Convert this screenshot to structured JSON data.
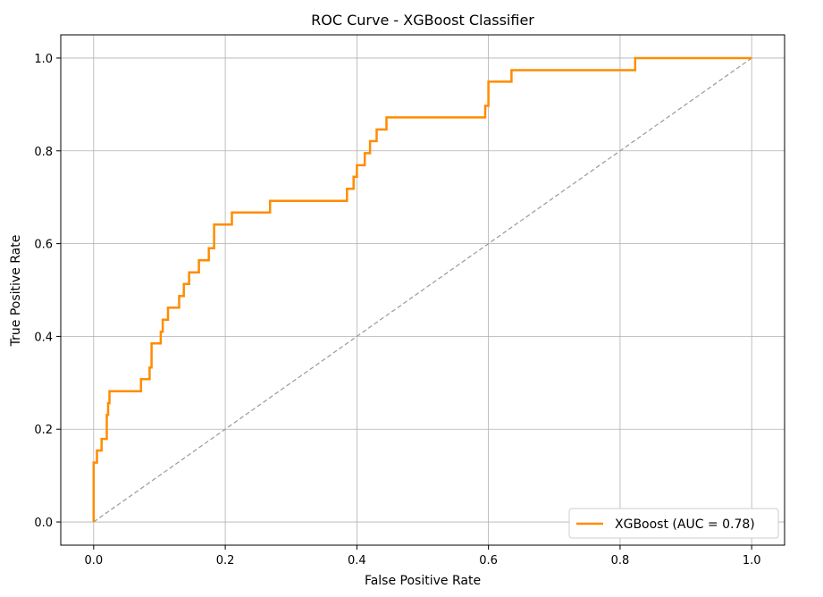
{
  "chart_data": {
    "type": "line",
    "title": "ROC Curve - XGBoost Classifier",
    "xlabel": "False Positive Rate",
    "ylabel": "True Positive Rate",
    "xlim": [
      -0.05,
      1.05
    ],
    "ylim": [
      -0.05,
      1.05
    ],
    "xticks": [
      "0.0",
      "0.2",
      "0.4",
      "0.6",
      "0.8",
      "1.0"
    ],
    "yticks": [
      "0.0",
      "0.2",
      "0.4",
      "0.6",
      "0.8",
      "1.0"
    ],
    "grid": true,
    "legend_position": "bottom-right",
    "series": [
      {
        "name": "XGBoost (AUC = 0.78)",
        "color": "#ff8c00",
        "style": "solid",
        "x": [
          0,
          0,
          0.005,
          0.005,
          0.012,
          0.012,
          0.02,
          0.02,
          0.022,
          0.022,
          0.024,
          0.024,
          0.03,
          0.03,
          0.072,
          0.072,
          0.085,
          0.085,
          0.088,
          0.088,
          0.102,
          0.102,
          0.105,
          0.105,
          0.113,
          0.113,
          0.13,
          0.13,
          0.137,
          0.137,
          0.145,
          0.145,
          0.16,
          0.16,
          0.175,
          0.175,
          0.183,
          0.183,
          0.21,
          0.21,
          0.268,
          0.268,
          0.385,
          0.385,
          0.395,
          0.395,
          0.4,
          0.4,
          0.412,
          0.412,
          0.42,
          0.42,
          0.43,
          0.43,
          0.445,
          0.445,
          0.595,
          0.595,
          0.6,
          0.6,
          0.635,
          0.635,
          0.823,
          0.823,
          1.0
        ],
        "y": [
          0,
          0.128,
          0.128,
          0.154,
          0.154,
          0.179,
          0.179,
          0.231,
          0.231,
          0.256,
          0.256,
          0.282,
          0.282,
          0.282,
          0.282,
          0.308,
          0.308,
          0.333,
          0.333,
          0.385,
          0.385,
          0.41,
          0.41,
          0.436,
          0.436,
          0.462,
          0.462,
          0.487,
          0.487,
          0.513,
          0.513,
          0.538,
          0.538,
          0.564,
          0.564,
          0.59,
          0.59,
          0.641,
          0.641,
          0.667,
          0.667,
          0.692,
          0.692,
          0.718,
          0.718,
          0.744,
          0.744,
          0.769,
          0.769,
          0.795,
          0.795,
          0.821,
          0.821,
          0.846,
          0.846,
          0.872,
          0.872,
          0.897,
          0.897,
          0.949,
          0.949,
          0.974,
          0.974,
          1.0,
          1.0
        ]
      },
      {
        "name": "",
        "color": "#999999",
        "style": "dashed",
        "x": [
          0,
          1
        ],
        "y": [
          0,
          1
        ]
      }
    ]
  }
}
